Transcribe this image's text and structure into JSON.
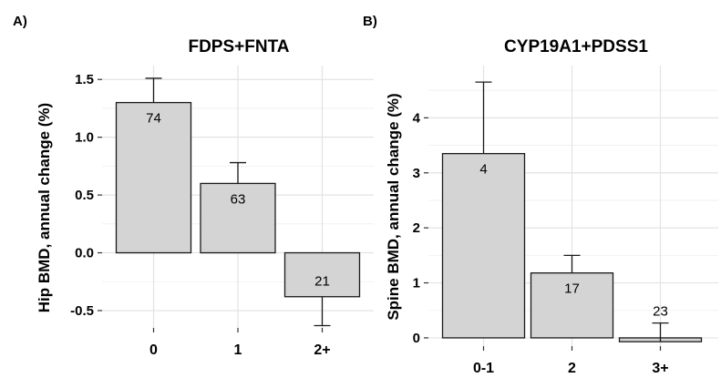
{
  "chart_data": [
    {
      "type": "bar",
      "panel_label": "A)",
      "title": "FDPS+FNTA",
      "xlabel": "",
      "ylabel": "Hip BMD, annual change (%)",
      "categories": [
        "0",
        "1",
        "2+"
      ],
      "values": [
        1.3,
        0.6,
        -0.38
      ],
      "error_high": [
        1.51,
        0.78,
        -0.38
      ],
      "error_low": [
        1.3,
        0.6,
        -0.63
      ],
      "data_labels": [
        "74",
        "63",
        "21"
      ],
      "ylim": [
        -0.65,
        1.62
      ],
      "yticks": [
        -0.5,
        0.0,
        0.5,
        1.0,
        1.5
      ],
      "ytick_labels": [
        "-0.5",
        "0.0",
        "0.5",
        "1.0",
        "1.5"
      ],
      "grid": true,
      "bar_color": "#d4d4d4"
    },
    {
      "type": "bar",
      "panel_label": "B)",
      "title": "CYP19A1+PDSS1",
      "xlabel": "",
      "ylabel": "Spine BMD, annual change (%)",
      "categories": [
        "0-1",
        "2",
        "3+"
      ],
      "values": [
        3.35,
        1.18,
        -0.07
      ],
      "error_high": [
        4.65,
        1.5,
        0.27
      ],
      "error_low": [
        3.35,
        1.18,
        -0.07
      ],
      "data_labels": [
        "4",
        "17",
        "23"
      ],
      "ylim": [
        -0.15,
        4.95
      ],
      "yticks": [
        0,
        1,
        2,
        3,
        4
      ],
      "ytick_labels": [
        "0",
        "1",
        "2",
        "3",
        "4"
      ],
      "grid": true,
      "bar_color": "#d4d4d4"
    }
  ]
}
